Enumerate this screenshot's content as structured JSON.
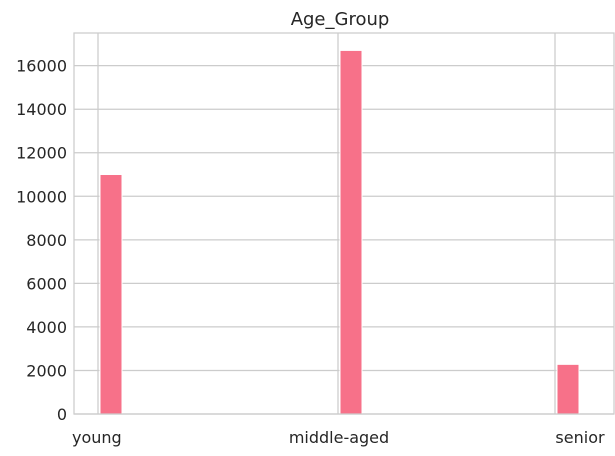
{
  "chart_data": {
    "type": "bar",
    "title": "Age_Group",
    "xlabel": "",
    "ylabel": "",
    "categories": [
      "young",
      "middle-aged",
      "senior"
    ],
    "values": [
      11000,
      16700,
      2280
    ],
    "ylim": [
      0,
      17500
    ],
    "yticks": [
      0,
      2000,
      4000,
      6000,
      8000,
      10000,
      12000,
      14000,
      16000
    ],
    "grid": true,
    "bar_color": "#f77189",
    "grid_color": "#cccccc",
    "axes_edge_color": "#cccccc"
  }
}
